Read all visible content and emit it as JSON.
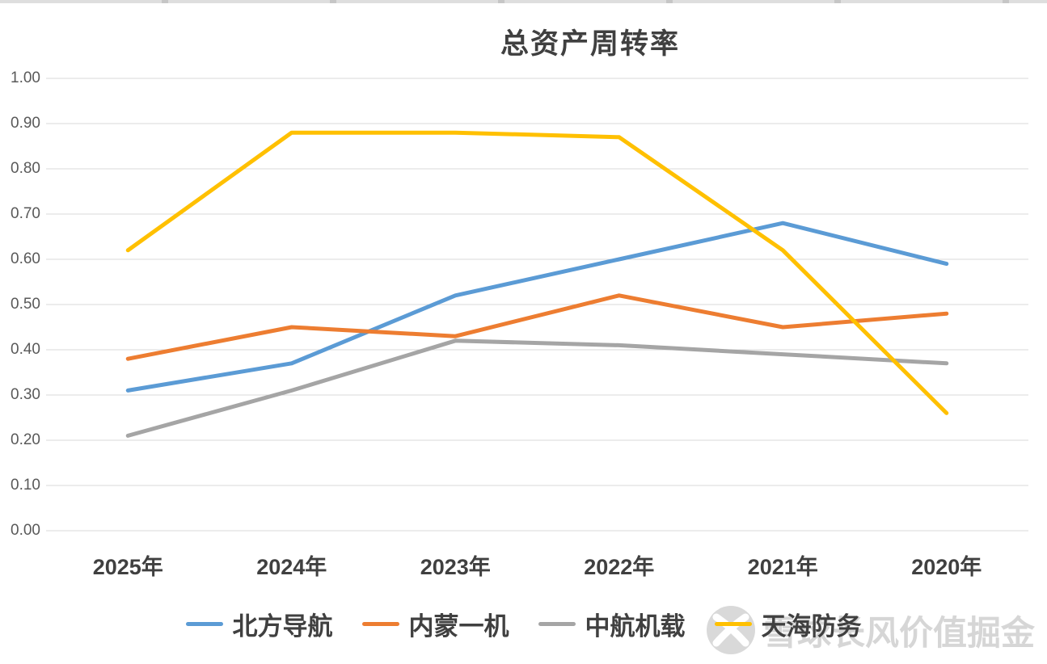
{
  "chart_data": {
    "type": "line",
    "title": "总资产周转率",
    "title_color": "#404040",
    "categories": [
      "2025年",
      "2024年",
      "2023年",
      "2022年",
      "2021年",
      "2020年"
    ],
    "series": [
      {
        "name": "北方导航",
        "color": "#5B9BD5",
        "values": [
          0.31,
          0.37,
          0.52,
          0.6,
          0.68,
          0.59
        ]
      },
      {
        "name": "内蒙一机",
        "color": "#ED7D31",
        "values": [
          0.38,
          0.45,
          0.43,
          0.52,
          0.45,
          0.48
        ]
      },
      {
        "name": "中航机载",
        "color": "#A5A5A5",
        "values": [
          0.21,
          0.31,
          0.42,
          0.41,
          0.39,
          0.37
        ]
      },
      {
        "name": "天海防务",
        "color": "#FFC000",
        "values": [
          0.62,
          0.88,
          0.88,
          0.87,
          0.62,
          0.26
        ]
      }
    ],
    "ylim": [
      0,
      1
    ],
    "ytick_labels": [
      "0.00",
      "0.10",
      "0.20",
      "0.30",
      "0.40",
      "0.50",
      "0.60",
      "0.70",
      "0.80",
      "0.90",
      "1.00"
    ],
    "grid": true,
    "gridline_color": "#D9D9D9",
    "yaxis_label_color": "#595959",
    "xaxis_label_color": "#404040",
    "legend_position": "bottom",
    "legend_text_color": "#404040",
    "line_width": 5
  },
  "watermark": {
    "brand": "雪球",
    "user": "长风价值掘金",
    "logo": "xueqiu-logo",
    "color": "#D6D6D6"
  }
}
